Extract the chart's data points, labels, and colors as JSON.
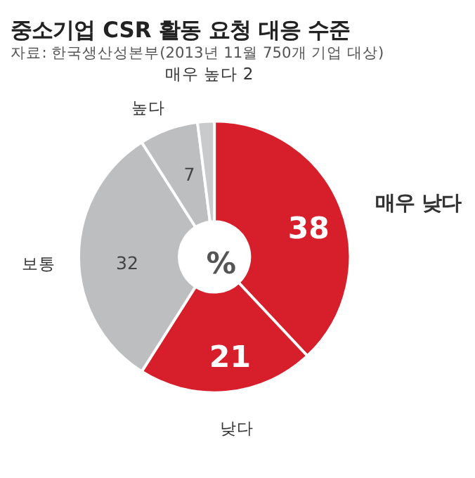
{
  "chart_data": {
    "type": "donut",
    "title": "중소기업 CSR 활동 요청 대응 수준",
    "subtitle": "자료: 한국생산성본부(2013년 11월 750개 기업 대상)",
    "categories": [
      "매우 낮다",
      "낮다",
      "보통",
      "높다",
      "매우 높다"
    ],
    "values": [
      38,
      21,
      32,
      7,
      2
    ],
    "colors": [
      "#d71e2b",
      "#d71e2b",
      "#bdbec0",
      "#bdbec0",
      "#c9cacc"
    ],
    "value_labels": [
      "38",
      "21",
      "32",
      "7",
      "2"
    ],
    "annotations": [
      "%"
    ],
    "legend": false
  }
}
